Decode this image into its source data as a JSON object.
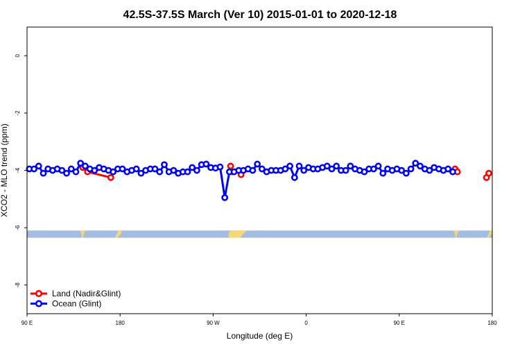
{
  "chart_data": {
    "type": "line",
    "title": "42.5S-37.5S March (Ver 10)   2015-01-01 to 2020-12-18",
    "xlabel": "Longitude (deg E)",
    "ylabel": "XCO2 - MLO trend (ppm)",
    "xlim": [
      90,
      450
    ],
    "ylim": [
      -9,
      1
    ],
    "x_ticks": [
      {
        "value": 90,
        "label": "90 E"
      },
      {
        "value": 162,
        "label": "180"
      },
      {
        "value": 234,
        "label": "90 W"
      },
      {
        "value": 306,
        "label": "0"
      },
      {
        "value": 378,
        "label": "90 E"
      },
      {
        "value": 450,
        "label": "180"
      }
    ],
    "y_ticks": [
      {
        "value": 0,
        "label": "0"
      },
      {
        "value": -2,
        "label": "-2"
      },
      {
        "value": -4,
        "label": "-4"
      },
      {
        "value": -6,
        "label": "-6"
      },
      {
        "value": -8,
        "label": "-8"
      }
    ],
    "legend_position": "bottom-left",
    "grid": false,
    "series": [
      {
        "name": "Land (Nadir&Glint)",
        "color": "#ff0000",
        "segments": [
          [
            [
              133.2,
              -3.9
            ],
            [
              136.8,
              -4.05
            ],
            [
              154.8,
              -4.25
            ]
          ],
          [
            [
              247.5,
              -3.85
            ],
            [
              248.8,
              -4.05
            ]
          ],
          [
            [
              255.6,
              -4.15
            ]
          ],
          [
            [
              421.2,
              -3.95
            ],
            [
              423.0,
              -4.05
            ]
          ],
          [
            [
              445.5,
              -4.25
            ],
            [
              447.3,
              -4.1
            ]
          ]
        ]
      },
      {
        "name": "Ocean (Glint)",
        "color": "#0000ff",
        "points": [
          [
            91.8,
            -3.95
          ],
          [
            95.4,
            -3.95
          ],
          [
            99.0,
            -3.85
          ],
          [
            102.6,
            -4.1
          ],
          [
            106.2,
            -3.95
          ],
          [
            109.8,
            -4.0
          ],
          [
            113.4,
            -3.95
          ],
          [
            117.0,
            -4.0
          ],
          [
            120.6,
            -4.1
          ],
          [
            124.2,
            -3.95
          ],
          [
            127.8,
            -4.05
          ],
          [
            131.4,
            -3.75
          ],
          [
            135.0,
            -3.85
          ],
          [
            138.6,
            -3.95
          ],
          [
            142.2,
            -4.0
          ],
          [
            145.8,
            -3.9
          ],
          [
            149.4,
            -3.95
          ],
          [
            153.0,
            -4.0
          ],
          [
            156.6,
            -4.05
          ],
          [
            160.2,
            -3.95
          ],
          [
            163.8,
            -3.95
          ],
          [
            167.4,
            -4.05
          ],
          [
            171.0,
            -4.0
          ],
          [
            174.6,
            -3.95
          ],
          [
            178.2,
            -4.1
          ],
          [
            181.8,
            -4.0
          ],
          [
            185.4,
            -3.95
          ],
          [
            189.0,
            -3.95
          ],
          [
            192.6,
            -4.05
          ],
          [
            196.2,
            -3.8
          ],
          [
            199.8,
            -4.05
          ],
          [
            203.4,
            -4.0
          ],
          [
            207.0,
            -4.1
          ],
          [
            210.6,
            -4.05
          ],
          [
            214.2,
            -4.05
          ],
          [
            217.8,
            -3.9
          ],
          [
            221.4,
            -4.0
          ],
          [
            225.0,
            -3.8
          ],
          [
            228.6,
            -3.78
          ],
          [
            232.2,
            -3.9
          ],
          [
            235.8,
            -3.92
          ],
          [
            239.4,
            -3.88
          ],
          [
            243.0,
            -4.95
          ],
          [
            246.6,
            -4.05
          ],
          [
            250.2,
            -4.05
          ],
          [
            253.8,
            -4.0
          ],
          [
            257.4,
            -4.0
          ],
          [
            261.0,
            -3.95
          ],
          [
            264.6,
            -4.0
          ],
          [
            268.2,
            -3.78
          ],
          [
            271.8,
            -3.95
          ],
          [
            275.4,
            -4.05
          ],
          [
            279.0,
            -4.0
          ],
          [
            282.6,
            -4.0
          ],
          [
            286.2,
            -4.0
          ],
          [
            289.8,
            -3.95
          ],
          [
            293.4,
            -3.85
          ],
          [
            297.0,
            -4.25
          ],
          [
            300.6,
            -3.85
          ],
          [
            304.2,
            -4.0
          ],
          [
            307.8,
            -3.9
          ],
          [
            311.4,
            -3.95
          ],
          [
            315.0,
            -3.95
          ],
          [
            318.6,
            -3.9
          ],
          [
            322.2,
            -3.85
          ],
          [
            325.8,
            -3.95
          ],
          [
            329.4,
            -3.85
          ],
          [
            333.0,
            -4.0
          ],
          [
            336.6,
            -4.0
          ],
          [
            340.2,
            -3.85
          ],
          [
            343.8,
            -3.95
          ],
          [
            347.4,
            -4.0
          ],
          [
            351.0,
            -4.05
          ],
          [
            354.6,
            -3.95
          ],
          [
            358.2,
            -3.95
          ],
          [
            361.8,
            -3.85
          ],
          [
            365.4,
            -4.1
          ],
          [
            369.0,
            -3.95
          ],
          [
            372.6,
            -4.0
          ],
          [
            376.2,
            -3.95
          ],
          [
            379.8,
            -4.0
          ],
          [
            383.4,
            -4.1
          ],
          [
            387.0,
            -3.95
          ],
          [
            390.6,
            -3.75
          ],
          [
            394.2,
            -3.85
          ],
          [
            397.8,
            -3.95
          ],
          [
            401.4,
            -4.0
          ],
          [
            405.0,
            -3.9
          ],
          [
            408.6,
            -3.95
          ],
          [
            412.2,
            -4.0
          ],
          [
            415.8,
            -3.95
          ],
          [
            419.4,
            -4.05
          ]
        ]
      }
    ],
    "coverage_band": {
      "y_range": [
        -6.35,
        -6.1
      ],
      "colors": {
        "ocean": "#a3bce0",
        "land": "#f5d67a"
      },
      "land_patches": [
        {
          "x_range": [
            131.0,
            135.0
          ],
          "shape": "notch"
        },
        {
          "x_range": [
            158.0,
            163.0
          ],
          "shape": "wedge"
        },
        {
          "x_range": [
            246.0,
            260.0
          ],
          "shape": "block"
        },
        {
          "x_range": [
            420.0,
            424.0
          ],
          "shape": "notch"
        },
        {
          "x_range": [
            446.0,
            450.0
          ],
          "shape": "wedge"
        }
      ]
    }
  }
}
